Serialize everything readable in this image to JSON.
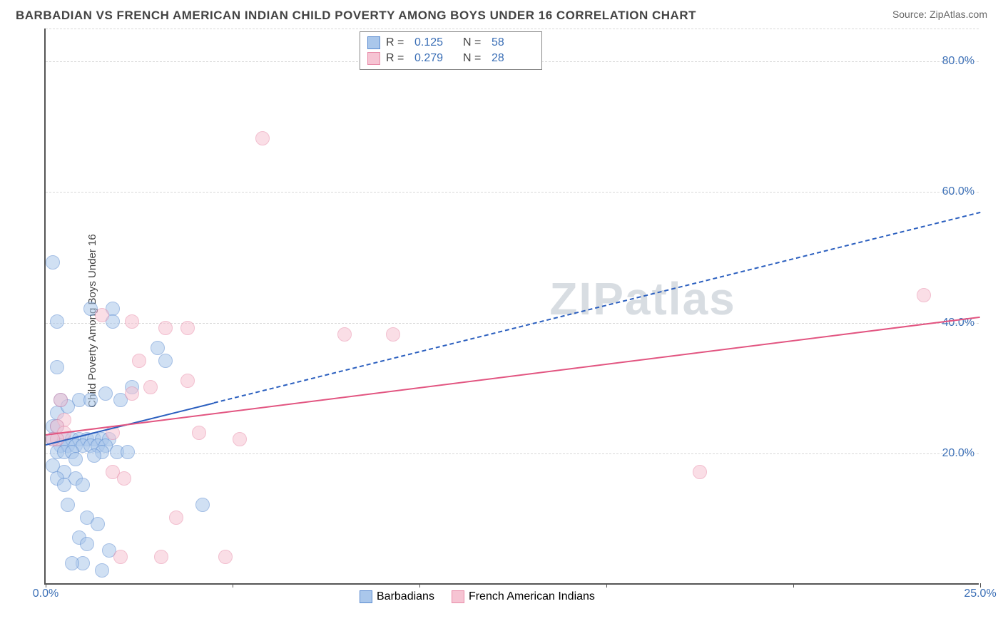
{
  "header": {
    "title": "BARBADIAN VS FRENCH AMERICAN INDIAN CHILD POVERTY AMONG BOYS UNDER 16 CORRELATION CHART",
    "source_prefix": "Source: ",
    "source_name": "ZipAtlas.com"
  },
  "watermark": {
    "bold": "ZIP",
    "rest": "atlas"
  },
  "chart": {
    "type": "scatter",
    "ylabel": "Child Poverty Among Boys Under 16",
    "xlim": [
      0,
      25
    ],
    "ylim": [
      0,
      85
    ],
    "ytick_values": [
      20,
      40,
      60,
      80
    ],
    "ytick_labels": [
      "20.0%",
      "40.0%",
      "60.0%",
      "80.0%"
    ],
    "xtick_values": [
      0,
      25
    ],
    "xtick_labels": [
      "0.0%",
      "25.0%"
    ],
    "xtick_marks": [
      0,
      5,
      10,
      15,
      20,
      25
    ],
    "tick_color": "#3b6fb6",
    "grid_color": "#d8d8d8",
    "background_color": "#ffffff",
    "marker_radius": 10,
    "marker_opacity": 0.55,
    "series": [
      {
        "name": "Barbadians",
        "color_stroke": "#5a8bd0",
        "color_fill": "#aac7eb",
        "trend": {
          "y_at_x0": 21.5,
          "y_at_xmax": 57,
          "solid_until_x": 4.5,
          "style_after": "dashed",
          "color": "#2b5fbf",
          "width": 2
        },
        "corr": {
          "R": "0.125",
          "N": "58"
        },
        "points": [
          [
            0.2,
            49
          ],
          [
            0.3,
            40
          ],
          [
            1.2,
            42
          ],
          [
            1.8,
            42
          ],
          [
            1.8,
            40
          ],
          [
            0.3,
            33
          ],
          [
            0.4,
            28
          ],
          [
            0.3,
            26
          ],
          [
            0.2,
            24
          ],
          [
            0.3,
            24
          ],
          [
            0.6,
            27
          ],
          [
            0.9,
            28
          ],
          [
            1.2,
            28
          ],
          [
            1.6,
            29
          ],
          [
            2.0,
            28
          ],
          [
            2.3,
            30
          ],
          [
            0.2,
            22
          ],
          [
            0.3,
            22
          ],
          [
            0.5,
            22
          ],
          [
            0.7,
            22
          ],
          [
            0.9,
            22
          ],
          [
            1.1,
            22
          ],
          [
            1.3,
            22
          ],
          [
            1.5,
            22
          ],
          [
            1.7,
            22
          ],
          [
            0.4,
            21
          ],
          [
            0.6,
            21
          ],
          [
            0.8,
            21
          ],
          [
            1.0,
            21
          ],
          [
            1.2,
            21
          ],
          [
            1.4,
            21
          ],
          [
            1.6,
            21
          ],
          [
            0.3,
            20
          ],
          [
            0.5,
            20
          ],
          [
            0.7,
            20
          ],
          [
            0.8,
            19
          ],
          [
            1.5,
            20
          ],
          [
            0.2,
            18
          ],
          [
            0.5,
            17
          ],
          [
            1.3,
            19.5
          ],
          [
            1.9,
            20
          ],
          [
            2.2,
            20
          ],
          [
            0.3,
            16
          ],
          [
            0.5,
            15
          ],
          [
            0.8,
            16
          ],
          [
            1.0,
            15
          ],
          [
            0.6,
            12
          ],
          [
            1.1,
            10
          ],
          [
            1.4,
            9
          ],
          [
            4.2,
            12
          ],
          [
            0.9,
            7
          ],
          [
            1.1,
            6
          ],
          [
            1.7,
            5
          ],
          [
            1.0,
            3
          ],
          [
            0.7,
            3
          ],
          [
            1.5,
            2
          ],
          [
            3.0,
            36
          ],
          [
            3.2,
            34
          ]
        ]
      },
      {
        "name": "French American Indians",
        "color_stroke": "#e88ba8",
        "color_fill": "#f6c4d3",
        "trend": {
          "y_at_x0": 23,
          "y_at_xmax": 41,
          "solid_until_x": 25,
          "style_after": "solid",
          "color": "#e25581",
          "width": 2.5
        },
        "corr": {
          "R": "0.279",
          "N": "28"
        },
        "points": [
          [
            5.8,
            68
          ],
          [
            1.5,
            41
          ],
          [
            2.3,
            40
          ],
          [
            3.2,
            39
          ],
          [
            3.8,
            39
          ],
          [
            8.0,
            38
          ],
          [
            9.3,
            38
          ],
          [
            2.5,
            34
          ],
          [
            3.8,
            31
          ],
          [
            2.8,
            30
          ],
          [
            2.3,
            29
          ],
          [
            0.4,
            28
          ],
          [
            0.5,
            25
          ],
          [
            0.3,
            24
          ],
          [
            0.5,
            23
          ],
          [
            1.8,
            23
          ],
          [
            0.3,
            22
          ],
          [
            5.2,
            22
          ],
          [
            4.1,
            23
          ],
          [
            1.8,
            17
          ],
          [
            2.1,
            16
          ],
          [
            3.5,
            10
          ],
          [
            3.1,
            4
          ],
          [
            4.8,
            4
          ],
          [
            2.0,
            4
          ],
          [
            17.5,
            17
          ],
          [
            23.5,
            44
          ],
          [
            0.2,
            22
          ]
        ]
      }
    ],
    "corr_legend": {
      "R_label": "R  =",
      "N_label": "N  ="
    }
  }
}
